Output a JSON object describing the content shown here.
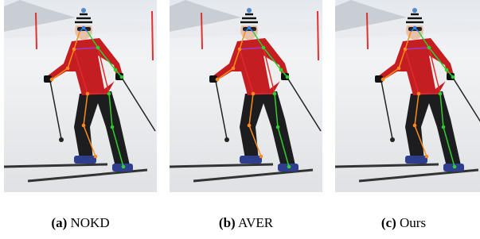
{
  "figure": {
    "panels": [
      {
        "label": "(a)",
        "caption": "NOKD"
      },
      {
        "label": "(b)",
        "caption": "AVER"
      },
      {
        "label": "(c)",
        "caption": "Ours"
      }
    ]
  }
}
